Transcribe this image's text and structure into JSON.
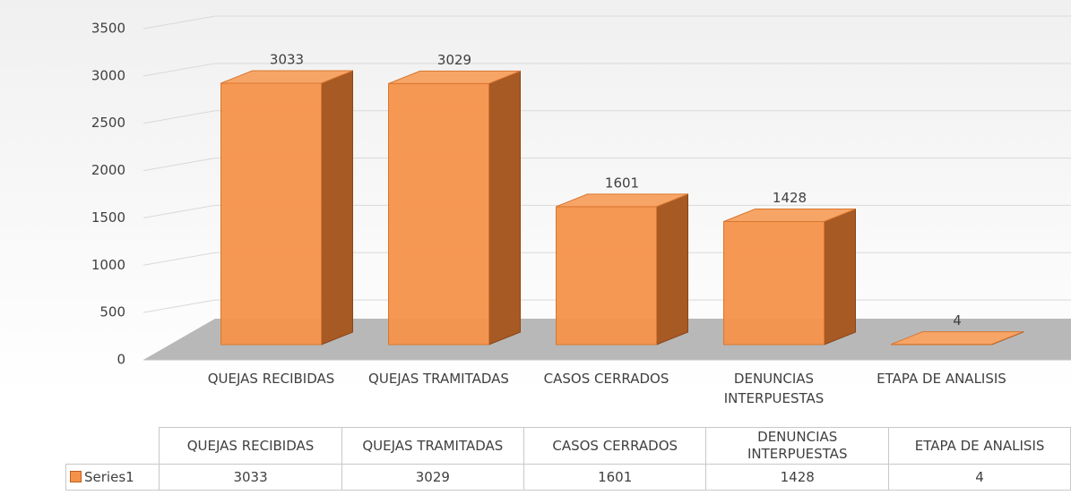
{
  "chart_data": {
    "type": "bar",
    "categories": [
      "QUEJAS RECIBIDAS",
      "QUEJAS TRAMITADAS",
      "CASOS CERRADOS",
      "DENUNCIAS INTERPUESTAS",
      "ETAPA DE ANALISIS"
    ],
    "series": [
      {
        "name": "Series1",
        "color": "#f4924a",
        "values": [
          3033,
          3029,
          1601,
          1428,
          4
        ]
      }
    ],
    "ylim": [
      0,
      3500
    ],
    "yticks": [
      0,
      500,
      1000,
      1500,
      2000,
      2500,
      3000,
      3500
    ],
    "grid": true,
    "data_table": true
  }
}
